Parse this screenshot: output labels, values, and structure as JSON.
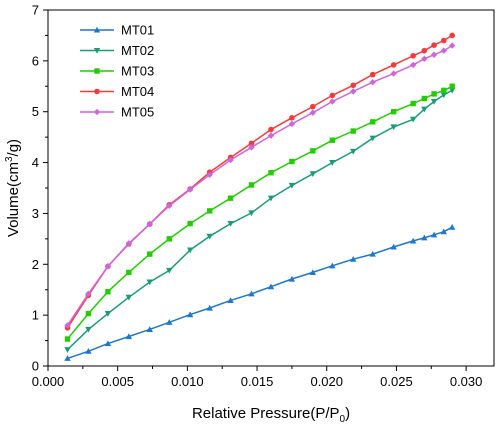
{
  "chart_data": {
    "type": "line",
    "xlabel": {
      "prefix": "Relative Pressure(P/P",
      "sub": "0",
      "suffix": ")"
    },
    "ylabel": {
      "prefix": "Volume(cm",
      "sup": "3",
      "suffix": "/g)"
    },
    "xlim": [
      0.0,
      0.032
    ],
    "ylim": [
      0,
      7
    ],
    "x_ticks": [
      "0.000",
      "0.005",
      "0.010",
      "0.015",
      "0.020",
      "0.025",
      "0.030"
    ],
    "y_ticks": [
      "0",
      "1",
      "2",
      "3",
      "4",
      "5",
      "6",
      "7"
    ],
    "legend_position": "top-left",
    "series": [
      {
        "name": "MT01",
        "color": "#1f77c8",
        "marker": "triangle-up",
        "x": [
          0.0014,
          0.0029,
          0.0043,
          0.0058,
          0.0073,
          0.0087,
          0.0102,
          0.0116,
          0.0131,
          0.0146,
          0.016,
          0.0175,
          0.019,
          0.0204,
          0.0219,
          0.0233,
          0.0248,
          0.0262,
          0.027,
          0.0277,
          0.0284,
          0.029
        ],
        "y": [
          0.15,
          0.29,
          0.44,
          0.58,
          0.72,
          0.86,
          1.01,
          1.14,
          1.29,
          1.42,
          1.56,
          1.71,
          1.84,
          1.97,
          2.1,
          2.2,
          2.34,
          2.46,
          2.52,
          2.58,
          2.64,
          2.73
        ]
      },
      {
        "name": "MT02",
        "color": "#1b9b76",
        "marker": "triangle-down",
        "x": [
          0.0014,
          0.0029,
          0.0043,
          0.0058,
          0.0073,
          0.0087,
          0.0102,
          0.0116,
          0.0131,
          0.0146,
          0.016,
          0.0175,
          0.019,
          0.0204,
          0.0219,
          0.0233,
          0.0248,
          0.0262,
          0.027,
          0.0277,
          0.0284,
          0.029
        ],
        "y": [
          0.32,
          0.72,
          1.03,
          1.35,
          1.65,
          1.88,
          2.28,
          2.55,
          2.8,
          3.01,
          3.3,
          3.55,
          3.78,
          4.0,
          4.22,
          4.48,
          4.7,
          4.85,
          5.05,
          5.2,
          5.33,
          5.42
        ]
      },
      {
        "name": "MT03",
        "color": "#22cc00",
        "marker": "square",
        "x": [
          0.0014,
          0.0029,
          0.0043,
          0.0058,
          0.0073,
          0.0087,
          0.0102,
          0.0116,
          0.0131,
          0.0146,
          0.016,
          0.0175,
          0.019,
          0.0204,
          0.0219,
          0.0233,
          0.0248,
          0.0262,
          0.027,
          0.0277,
          0.0284,
          0.029
        ],
        "y": [
          0.53,
          1.03,
          1.46,
          1.84,
          2.2,
          2.5,
          2.8,
          3.05,
          3.3,
          3.56,
          3.8,
          4.02,
          4.23,
          4.44,
          4.62,
          4.8,
          5.0,
          5.16,
          5.26,
          5.35,
          5.42,
          5.5
        ]
      },
      {
        "name": "MT04",
        "color": "#f23c3c",
        "marker": "circle",
        "x": [
          0.0014,
          0.0029,
          0.0043,
          0.0058,
          0.0073,
          0.0087,
          0.0102,
          0.0116,
          0.0131,
          0.0146,
          0.016,
          0.0175,
          0.019,
          0.0204,
          0.0219,
          0.0233,
          0.0248,
          0.0262,
          0.027,
          0.0277,
          0.0284,
          0.029
        ],
        "y": [
          0.75,
          1.39,
          1.96,
          2.4,
          2.79,
          3.17,
          3.48,
          3.81,
          4.1,
          4.38,
          4.65,
          4.88,
          5.1,
          5.32,
          5.52,
          5.73,
          5.92,
          6.1,
          6.2,
          6.31,
          6.4,
          6.5
        ]
      },
      {
        "name": "MT05",
        "color": "#cc66dd",
        "marker": "diamond",
        "x": [
          0.0014,
          0.0029,
          0.0043,
          0.0058,
          0.0073,
          0.0087,
          0.0102,
          0.0116,
          0.0131,
          0.0146,
          0.016,
          0.0175,
          0.019,
          0.0204,
          0.0219,
          0.0233,
          0.0248,
          0.0262,
          0.027,
          0.0277,
          0.0284,
          0.029
        ],
        "y": [
          0.8,
          1.42,
          1.96,
          2.41,
          2.79,
          3.15,
          3.47,
          3.76,
          4.05,
          4.3,
          4.53,
          4.76,
          4.98,
          5.2,
          5.4,
          5.58,
          5.75,
          5.92,
          6.04,
          6.12,
          6.2,
          6.3
        ]
      }
    ]
  }
}
